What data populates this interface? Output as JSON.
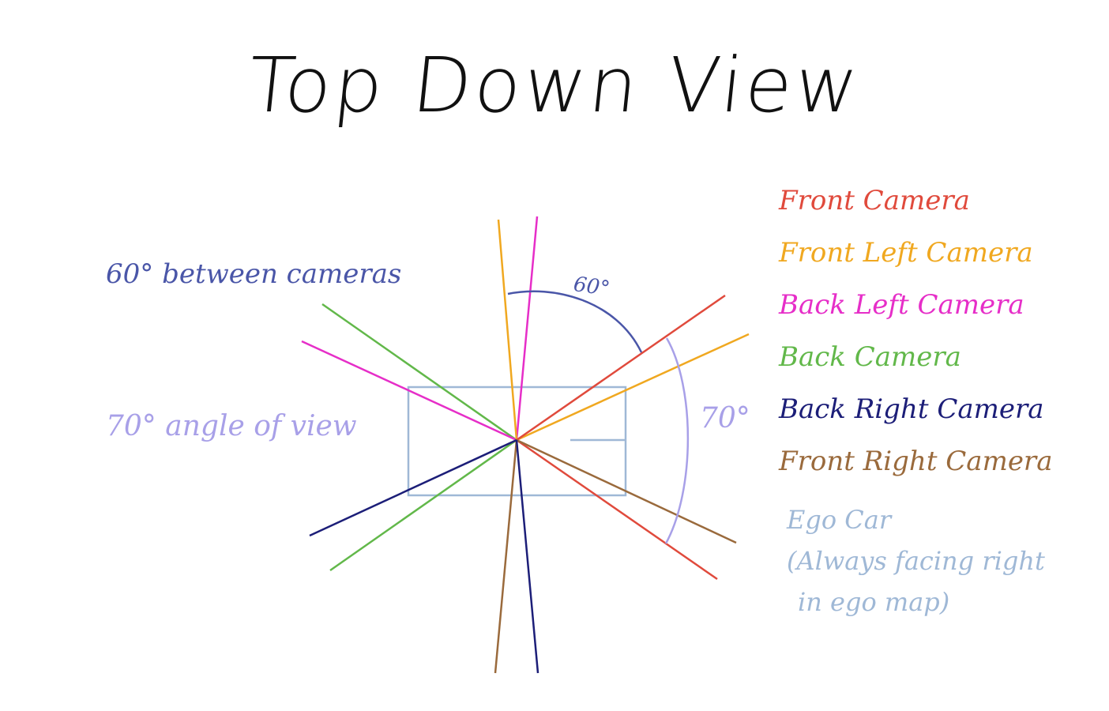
{
  "title": "Top Down View",
  "annotations": {
    "between_cameras": "60° between cameras",
    "angle_of_view": "70° angle of view",
    "arc_60_label": "60°",
    "arc_70_label": "70°"
  },
  "legend": [
    {
      "label": "Front Camera",
      "color": "#e04a3c"
    },
    {
      "label": "Front Left Camera",
      "color": "#f0a820"
    },
    {
      "label": "Back Left Camera",
      "color": "#e62ec8"
    },
    {
      "label": "Back Camera",
      "color": "#62b84a"
    },
    {
      "label": "Back Right Camera",
      "color": "#1c1e78"
    },
    {
      "label": "Front Right Camera",
      "color": "#9a6a3c"
    }
  ],
  "ego_car": {
    "lines": [
      "Ego Car",
      "(Always facing right",
      "in ego map)"
    ],
    "color": "#9fb8d6"
  },
  "colors": {
    "note_between": "#4a56a8",
    "note_aov": "#a8a0e8",
    "arc_60": "#4a56a8",
    "arc_70": "#a8a0e8",
    "title": "#111111"
  },
  "camera_headings_deg": {
    "front": 30,
    "front_left": 90,
    "back_left": 150,
    "back": 210,
    "back_right": 270,
    "front_right": 330
  },
  "field_of_view_deg": 70
}
